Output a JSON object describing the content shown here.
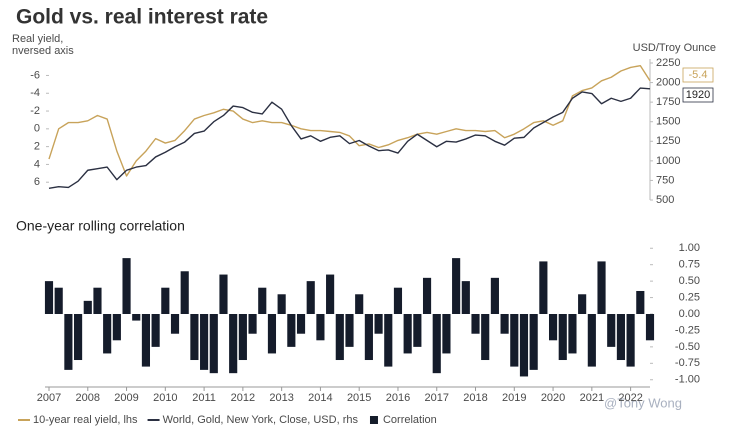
{
  "title": "Gold vs. real interest rate",
  "watermark": "@Tony Wong",
  "chart_data": [
    {
      "type": "line",
      "ylabel": [
        "Real yield,",
        "nversed axis"
      ],
      "y2label": "USD/Troy Ounce",
      "x": [
        2007,
        2007.25,
        2007.5,
        2007.75,
        2008,
        2008.25,
        2008.5,
        2008.75,
        2009,
        2009.25,
        2009.5,
        2009.75,
        2010,
        2010.25,
        2010.5,
        2010.75,
        2011,
        2011.25,
        2011.5,
        2011.75,
        2012,
        2012.25,
        2012.5,
        2012.75,
        2013,
        2013.25,
        2013.5,
        2013.75,
        2014,
        2014.25,
        2014.5,
        2014.75,
        2015,
        2015.25,
        2015.5,
        2015.75,
        2016,
        2016.25,
        2016.5,
        2016.75,
        2017,
        2017.25,
        2017.5,
        2017.75,
        2018,
        2018.25,
        2018.5,
        2018.75,
        2019,
        2019.25,
        2019.5,
        2019.75,
        2020,
        2020.25,
        2020.5,
        2020.75,
        2021,
        2021.25,
        2021.5,
        2021.75,
        2022,
        2022.25,
        2022.5
      ],
      "xlim": [
        2007,
        2022.5
      ],
      "ylim": [
        8,
        -7.4
      ],
      "yticks": [
        -6,
        -4,
        -2,
        0,
        2,
        4,
        6
      ],
      "y2lim": [
        500,
        2250
      ],
      "y2ticks": [
        500,
        750,
        1000,
        1250,
        1500,
        1750,
        2000,
        2250
      ],
      "grid": false,
      "series": [
        {
          "name": "10-year real yield, lhs",
          "color": "#c8a35a",
          "values": [
            3.4,
            0.0,
            -0.7,
            -0.7,
            -0.9,
            -1.5,
            -1.1,
            2.5,
            5.3,
            3.6,
            2.5,
            1.1,
            1.6,
            1.3,
            0.2,
            -1.1,
            -1.5,
            -1.8,
            -2.2,
            -2.0,
            -1.1,
            -0.7,
            -0.9,
            -0.7,
            -0.7,
            -0.4,
            0.0,
            0.2,
            0.2,
            0.3,
            0.4,
            0.8,
            1.9,
            1.7,
            2.1,
            1.8,
            1.3,
            1.0,
            0.6,
            0.4,
            0.6,
            0.3,
            0.0,
            0.2,
            0.2,
            0.3,
            0.2,
            1.0,
            0.6,
            0.0,
            -0.7,
            -0.9,
            -0.4,
            -0.9,
            -3.7,
            -4.3,
            -4.6,
            -5.4,
            -5.8,
            -6.5,
            -6.9,
            -7.1,
            -5.4
          ]
        },
        {
          "name": "World, Gold, New York, Close, USD, rhs",
          "color": "#2b3042",
          "axis": "y2",
          "values": [
            650,
            670,
            660,
            740,
            880,
            900,
            920,
            760,
            880,
            920,
            940,
            1050,
            1110,
            1180,
            1240,
            1350,
            1380,
            1500,
            1580,
            1700,
            1680,
            1620,
            1600,
            1750,
            1660,
            1450,
            1280,
            1320,
            1250,
            1300,
            1320,
            1220,
            1260,
            1190,
            1130,
            1140,
            1100,
            1250,
            1340,
            1260,
            1180,
            1250,
            1240,
            1280,
            1330,
            1320,
            1250,
            1200,
            1290,
            1300,
            1420,
            1490,
            1560,
            1620,
            1800,
            1880,
            1860,
            1730,
            1800,
            1760,
            1800,
            1930,
            1920
          ]
        }
      ]
    },
    {
      "type": "bar",
      "title": "One-year rolling correlation",
      "x": [
        2007,
        2007.25,
        2007.5,
        2007.75,
        2008,
        2008.25,
        2008.5,
        2008.75,
        2009,
        2009.25,
        2009.5,
        2009.75,
        2010,
        2010.25,
        2010.5,
        2010.75,
        2011,
        2011.25,
        2011.5,
        2011.75,
        2012,
        2012.25,
        2012.5,
        2012.75,
        2013,
        2013.25,
        2013.5,
        2013.75,
        2014,
        2014.25,
        2014.5,
        2014.75,
        2015,
        2015.25,
        2015.5,
        2015.75,
        2016,
        2016.25,
        2016.5,
        2016.75,
        2017,
        2017.25,
        2017.5,
        2017.75,
        2018,
        2018.25,
        2018.5,
        2018.75,
        2019,
        2019.25,
        2019.5,
        2019.75,
        2020,
        2020.25,
        2020.5,
        2020.75,
        2021,
        2021.25,
        2021.5,
        2021.75,
        2022,
        2022.25,
        2022.5
      ],
      "xlim": [
        2007,
        2022.5
      ],
      "xticks": [
        2007,
        2008,
        2009,
        2010,
        2011,
        2012,
        2013,
        2014,
        2015,
        2016,
        2017,
        2018,
        2019,
        2020,
        2021,
        2022
      ],
      "ylim": [
        -1.08,
        1.08
      ],
      "yticks": [
        {
          "value": 1,
          "label": "1.00"
        },
        {
          "value": 0.75,
          "label": "0.75"
        },
        {
          "value": 0.5,
          "label": "0.50"
        },
        {
          "value": 0.25,
          "label": "0.25"
        },
        {
          "value": 0,
          "label": "0.00"
        },
        {
          "value": -0.25,
          "label": "-0.25"
        },
        {
          "value": -0.5,
          "label": "-0.50"
        },
        {
          "value": -0.75,
          "label": "-0.75"
        },
        {
          "value": -1,
          "label": "-1.00"
        }
      ],
      "grid": false,
      "series": [
        {
          "name": "Correlation",
          "color": "#151c2b",
          "values": [
            0.5,
            0.4,
            -0.85,
            -0.7,
            0.2,
            0.4,
            -0.6,
            -0.4,
            0.85,
            -0.1,
            -0.8,
            -0.5,
            0.4,
            -0.3,
            0.65,
            -0.7,
            -0.85,
            -0.9,
            0.6,
            -0.9,
            -0.7,
            -0.3,
            0.4,
            -0.6,
            0.3,
            -0.5,
            -0.3,
            0.5,
            -0.4,
            0.6,
            -0.7,
            -0.5,
            0.3,
            -0.7,
            -0.3,
            -0.8,
            0.4,
            -0.6,
            -0.5,
            0.55,
            -0.9,
            -0.6,
            0.85,
            0.5,
            -0.3,
            -0.7,
            0.55,
            -0.3,
            -0.8,
            -0.95,
            -0.85,
            0.8,
            -0.4,
            -0.7,
            -0.6,
            0.3,
            -0.8,
            0.8,
            -0.5,
            -0.7,
            -0.8,
            0.35,
            -0.4
          ]
        }
      ]
    }
  ]
}
